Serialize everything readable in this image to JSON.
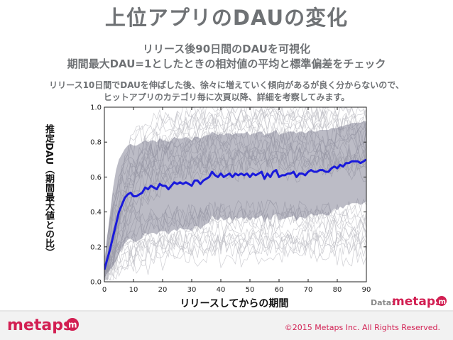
{
  "title": "上位アプリのDAUの変化",
  "subtitle_line1": "リリース後90日間のDAUを可視化",
  "subtitle_line2": "期間最大DAU=1としたときの相対値の平均と標準偏差をチェック",
  "desc_line1": "リリース10日間でDAUを伸ばした後、徐々に増えていく傾向があるが良く分からないので、",
  "desc_line2": "ヒットアプリのカテゴリ毎に次頁以降、詳細を考察してみます。",
  "data_label": "Data:",
  "logo_text": "metaps",
  "copyright": "©2015 Metaps Inc. All Rights Reserved.",
  "colors": {
    "accent": "#d21f52",
    "mean_line": "#1a1adb",
    "band": "#6b6b80",
    "text_gray": "#6f7275"
  },
  "chart_data": {
    "type": "line",
    "xlabel": "リリースしてからの期間",
    "ylabel": "推定DAU（期間最大値との比）",
    "xlim": [
      0,
      90
    ],
    "ylim": [
      0,
      1.0
    ],
    "x_ticks": [
      0,
      10,
      20,
      30,
      40,
      50,
      60,
      70,
      80,
      90
    ],
    "y_ticks": [
      "0.0",
      "0.2",
      "0.4",
      "0.6",
      "0.8",
      "1.0"
    ],
    "grid": false,
    "series": [
      {
        "x": [
          0,
          1,
          2,
          3,
          4,
          5,
          6,
          7,
          8,
          9,
          10,
          11,
          12,
          13,
          14,
          15,
          16,
          17,
          18,
          19,
          20,
          21,
          22,
          23,
          24,
          25,
          26,
          27,
          28,
          29,
          30,
          31,
          32,
          33,
          34,
          35,
          36,
          37,
          38,
          39,
          40,
          41,
          42,
          43,
          44,
          45,
          46,
          47,
          48,
          49,
          50,
          51,
          52,
          53,
          54,
          55,
          56,
          57,
          58,
          59,
          60,
          61,
          62,
          63,
          64,
          65,
          66,
          67,
          68,
          69,
          70,
          71,
          72,
          73,
          74,
          75,
          76,
          77,
          78,
          79,
          80,
          81,
          82,
          83,
          84,
          85,
          86,
          87,
          88,
          89,
          90
        ],
        "values": [
          0.07,
          0.13,
          0.19,
          0.26,
          0.33,
          0.4,
          0.44,
          0.48,
          0.5,
          0.51,
          0.49,
          0.49,
          0.5,
          0.51,
          0.54,
          0.53,
          0.55,
          0.54,
          0.53,
          0.56,
          0.55,
          0.55,
          0.53,
          0.55,
          0.57,
          0.56,
          0.57,
          0.56,
          0.57,
          0.56,
          0.55,
          0.58,
          0.58,
          0.56,
          0.58,
          0.59,
          0.6,
          0.63,
          0.61,
          0.6,
          0.62,
          0.6,
          0.61,
          0.62,
          0.6,
          0.62,
          0.61,
          0.62,
          0.61,
          0.62,
          0.6,
          0.62,
          0.61,
          0.62,
          0.63,
          0.59,
          0.62,
          0.6,
          0.63,
          0.64,
          0.6,
          0.61,
          0.61,
          0.62,
          0.62,
          0.63,
          0.6,
          0.62,
          0.62,
          0.61,
          0.63,
          0.64,
          0.63,
          0.63,
          0.64,
          0.64,
          0.63,
          0.63,
          0.65,
          0.66,
          0.65,
          0.67,
          0.66,
          0.68,
          0.68,
          0.69,
          0.69,
          0.69,
          0.68,
          0.69,
          0.7
        ]
      }
    ],
    "std_band": {
      "upper": [
        0.13,
        0.26,
        0.4,
        0.54,
        0.64,
        0.7,
        0.73,
        0.76,
        0.78,
        0.79,
        0.78,
        0.78,
        0.79,
        0.8,
        0.81,
        0.8,
        0.81,
        0.81,
        0.8,
        0.82,
        0.81,
        0.81,
        0.8,
        0.81,
        0.83,
        0.82,
        0.82,
        0.82,
        0.83,
        0.82,
        0.81,
        0.83,
        0.83,
        0.82,
        0.83,
        0.84,
        0.84,
        0.86,
        0.85,
        0.84,
        0.85,
        0.84,
        0.85,
        0.85,
        0.84,
        0.85,
        0.85,
        0.85,
        0.85,
        0.86,
        0.84,
        0.85,
        0.85,
        0.86,
        0.86,
        0.84,
        0.85,
        0.85,
        0.86,
        0.87,
        0.84,
        0.85,
        0.85,
        0.86,
        0.86,
        0.86,
        0.85,
        0.86,
        0.86,
        0.85,
        0.86,
        0.87,
        0.86,
        0.86,
        0.87,
        0.87,
        0.87,
        0.87,
        0.88,
        0.88,
        0.88,
        0.89,
        0.89,
        0.9,
        0.9,
        0.91,
        0.91,
        0.91,
        0.91,
        0.92,
        0.92
      ],
      "lower": [
        0.02,
        0.05,
        0.07,
        0.09,
        0.12,
        0.16,
        0.19,
        0.22,
        0.24,
        0.25,
        0.23,
        0.23,
        0.24,
        0.25,
        0.28,
        0.27,
        0.28,
        0.28,
        0.27,
        0.29,
        0.29,
        0.29,
        0.27,
        0.29,
        0.3,
        0.29,
        0.31,
        0.3,
        0.3,
        0.3,
        0.29,
        0.32,
        0.32,
        0.3,
        0.32,
        0.33,
        0.34,
        0.38,
        0.36,
        0.35,
        0.37,
        0.35,
        0.36,
        0.37,
        0.35,
        0.37,
        0.36,
        0.37,
        0.36,
        0.37,
        0.35,
        0.37,
        0.36,
        0.37,
        0.38,
        0.34,
        0.37,
        0.35,
        0.38,
        0.39,
        0.35,
        0.36,
        0.36,
        0.37,
        0.37,
        0.38,
        0.35,
        0.37,
        0.37,
        0.36,
        0.38,
        0.39,
        0.38,
        0.38,
        0.39,
        0.39,
        0.38,
        0.38,
        0.4,
        0.42,
        0.41,
        0.43,
        0.42,
        0.44,
        0.44,
        0.45,
        0.45,
        0.45,
        0.44,
        0.45,
        0.46
      ]
    }
  }
}
